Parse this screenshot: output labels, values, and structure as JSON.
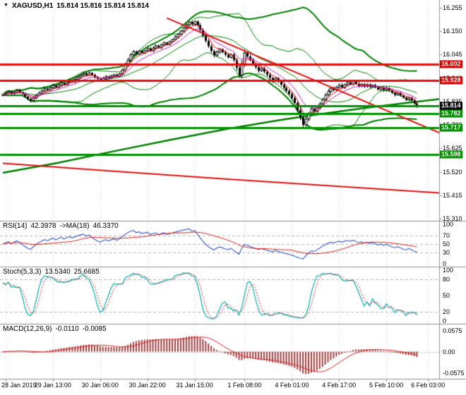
{
  "window": {
    "marker": "▼",
    "symbol_period": "XAGUSD,H1",
    "ohlc": "15.814 15.816 15.814 15.814"
  },
  "colors": {
    "background": "#ffffff",
    "bull": "#ffffff",
    "bear": "#000000",
    "outline": "#000000",
    "bollinger": "#008000",
    "support": "#009500",
    "resistance": "#e01010",
    "trendline": "#e01010",
    "ma_long_green": "#008000",
    "ma_long_red": "#e01010",
    "ema_fast": "#ff0000",
    "ema_mid": "#c020c0",
    "rsi_line": "#4060c8",
    "rsi_ma": "#e02020",
    "stoch_k": "#00b0b0",
    "stoch_d": "#e02020",
    "macd_hist": "#a03030",
    "macd_signal": "#e02020",
    "grid": "#d8d8d8",
    "level_dash": "#b4b4b4",
    "panel_border": "#909090",
    "bid_box": "#000000",
    "res_box": "#dd0000",
    "sup_box": "#009000"
  },
  "price_axis": {
    "ticks": [
      "16.255",
      "16.150",
      "16.045",
      "15.940",
      "15.835",
      "15.730",
      "15.625",
      "15.520",
      "15.415",
      "15.310"
    ],
    "boxes": [
      {
        "text": "16.002",
        "type": "resistance"
      },
      {
        "text": "15.928",
        "type": "resistance"
      },
      {
        "text": "15.782",
        "type": "support"
      },
      {
        "text": "15.717",
        "type": "support"
      },
      {
        "text": "15.598",
        "type": "support"
      }
    ],
    "bid": {
      "text": "15.814"
    }
  },
  "time_axis": {
    "labels": [
      "28 Jan 2019",
      "29 Jan 13:00",
      "30 Jan 06:00",
      "30 Jan 22:00",
      "31 Jan 15:00",
      "1 Feb 08:00",
      "4 Feb 01:00",
      "4 Feb 17:00",
      "5 Feb 10:00",
      "6 Feb 03:00"
    ]
  },
  "panels": {
    "rsi": {
      "name": "RSI(14)",
      "value": "42.3978",
      "ma_name": "->MA(18)",
      "ma_value": "46.3370",
      "scale": [
        "100",
        "70",
        "50",
        "30",
        "0"
      ],
      "levels": [
        70,
        50,
        30
      ]
    },
    "stoch": {
      "name": "Stoch(5,3,3)",
      "value": "13.5340",
      "signal": "25.6685",
      "scale": [
        "100",
        "80",
        "50",
        "20",
        "0"
      ],
      "levels": [
        80,
        20
      ]
    },
    "macd": {
      "name": "MACD(12,26,9)",
      "value": "-0.0110",
      "signal": "-0.0085",
      "scale": [
        "0.0575",
        "0.00",
        "-0.0575"
      ]
    }
  },
  "chart_data": {
    "type": "candlestick",
    "title": "XAGUSD,H1",
    "symbol": "XAGUSD",
    "timeframe": "H1",
    "last_price": 15.814,
    "price_range": [
      15.31,
      16.27
    ],
    "slots": 157,
    "label_indices": [
      1,
      18,
      35,
      52,
      69,
      87,
      104,
      121,
      138,
      153
    ],
    "closes": [
      15.866,
      15.872,
      15.878,
      15.87,
      15.876,
      15.884,
      15.876,
      15.868,
      15.856,
      15.846,
      15.838,
      15.85,
      15.862,
      15.872,
      15.882,
      15.892,
      15.886,
      15.896,
      15.906,
      15.898,
      15.908,
      15.918,
      15.91,
      15.92,
      15.93,
      15.924,
      15.934,
      15.944,
      15.952,
      15.96,
      15.952,
      15.962,
      15.954,
      15.944,
      15.936,
      15.93,
      15.938,
      15.946,
      15.94,
      15.948,
      15.954,
      15.948,
      15.958,
      15.976,
      15.998,
      16.02,
      16.044,
      16.058,
      16.048,
      16.06,
      16.052,
      16.062,
      16.072,
      16.062,
      16.074,
      16.084,
      16.076,
      16.088,
      16.098,
      16.09,
      16.102,
      16.112,
      16.124,
      16.136,
      16.15,
      16.164,
      16.178,
      16.19,
      16.18,
      16.192,
      16.176,
      16.154,
      16.13,
      16.106,
      16.082,
      16.06,
      16.042,
      16.056,
      16.068,
      16.056,
      16.044,
      16.032,
      16.044,
      16.02,
      15.986,
      15.952,
      16.004,
      16.052,
      16.036,
      16.02,
      16.004,
      15.988,
      15.972,
      15.982,
      15.968,
      15.954,
      15.94,
      15.928,
      15.938,
      15.924,
      15.91,
      15.896,
      15.882,
      15.868,
      15.85,
      15.828,
      15.796,
      15.762,
      15.73,
      15.756,
      15.78,
      15.802,
      15.79,
      15.806,
      15.824,
      15.844,
      15.864,
      15.88,
      15.894,
      15.886,
      15.898,
      15.908,
      15.898,
      15.91,
      15.92,
      15.912,
      15.924,
      15.914,
      15.904,
      15.912,
      15.902,
      15.91,
      15.9,
      15.908,
      15.898,
      15.888,
      15.896,
      15.886,
      15.894,
      15.884,
      15.874,
      15.864,
      15.872,
      15.862,
      15.852,
      15.842,
      15.85,
      15.84,
      15.826,
      15.814
    ],
    "levels": {
      "resistance": [
        16.002,
        15.928
      ],
      "support": [
        15.814,
        15.782,
        15.717,
        15.598
      ]
    },
    "trendline": {
      "i1": 59,
      "p1": 16.208,
      "i2": 157,
      "p2": 15.695
    },
    "ma_long_green": [
      [
        0,
        15.515
      ],
      [
        20,
        15.56
      ],
      [
        40,
        15.612
      ],
      [
        60,
        15.662
      ],
      [
        80,
        15.71
      ],
      [
        100,
        15.752
      ],
      [
        115,
        15.78
      ],
      [
        130,
        15.805
      ],
      [
        145,
        15.828
      ],
      [
        157,
        15.845
      ]
    ],
    "ma_long_red": [
      [
        0,
        15.558
      ],
      [
        40,
        15.522
      ],
      [
        80,
        15.488
      ],
      [
        120,
        15.455
      ],
      [
        157,
        15.425
      ]
    ],
    "indicators": {
      "bollinger_inner": {
        "period": 20,
        "deviation": 2.0
      },
      "bollinger_outer": {
        "period": 44,
        "deviation": 2.2
      },
      "ema_fast": 5,
      "ema_mid": 10,
      "rsi": {
        "period": 14,
        "ma_period": 18,
        "last": 42.3978,
        "ma_last": 46.337
      },
      "stochastic": {
        "k": 5,
        "d": 3,
        "slowing": 3,
        "last_k": 13.534,
        "last_d": 25.6685
      },
      "macd": {
        "fast": 12,
        "slow": 26,
        "signal": 9,
        "last": -0.011,
        "last_signal": -0.0085
      }
    }
  }
}
